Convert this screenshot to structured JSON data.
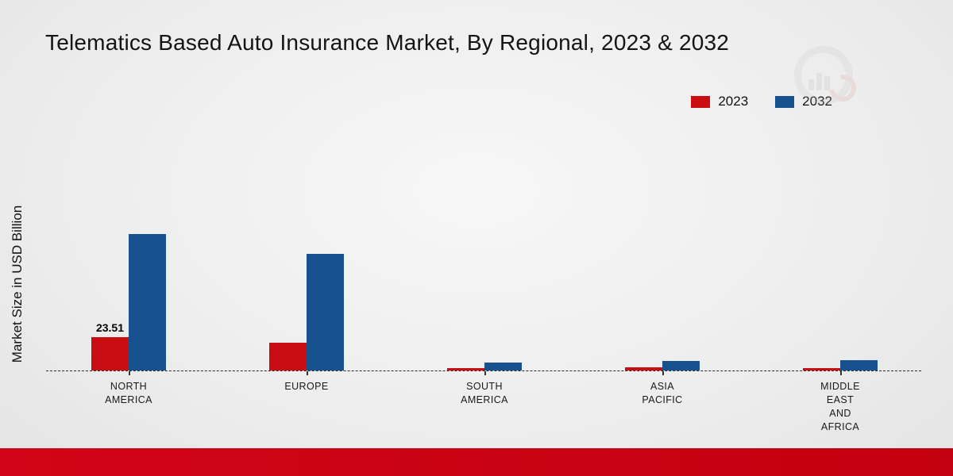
{
  "page": {
    "title": "Telematics Based Auto Insurance Market, By Regional, 2023 & 2032",
    "ylabel": "Market Size in USD Billion"
  },
  "legend": {
    "items": [
      {
        "label": "2023",
        "color": "#c90d12"
      },
      {
        "label": "2032",
        "color": "#17518e"
      }
    ]
  },
  "chart_data": {
    "type": "bar",
    "title": "Telematics Based Auto Insurance Market, By Regional, 2023 & 2032",
    "xlabel": "",
    "ylabel": "Market Size in USD Billion",
    "categories": [
      "NORTH AMERICA",
      "EUROPE",
      "SOUTH AMERICA",
      "ASIA PACIFIC",
      "MIDDLE EAST AND AFRICA"
    ],
    "series": [
      {
        "name": "2023",
        "color": "#c90d12",
        "values": [
          23.51,
          19.5,
          1.5,
          2.0,
          1.8
        ]
      },
      {
        "name": "2032",
        "color": "#17518e",
        "values": [
          96.0,
          82.5,
          5.5,
          6.5,
          7.0
        ]
      }
    ],
    "annotations": [
      {
        "series": 0,
        "category": 0,
        "text": "23.51"
      }
    ],
    "ylim": [
      0,
      110
    ],
    "baseline_style": "dashed",
    "grid": false,
    "legend_position": "top-right"
  }
}
